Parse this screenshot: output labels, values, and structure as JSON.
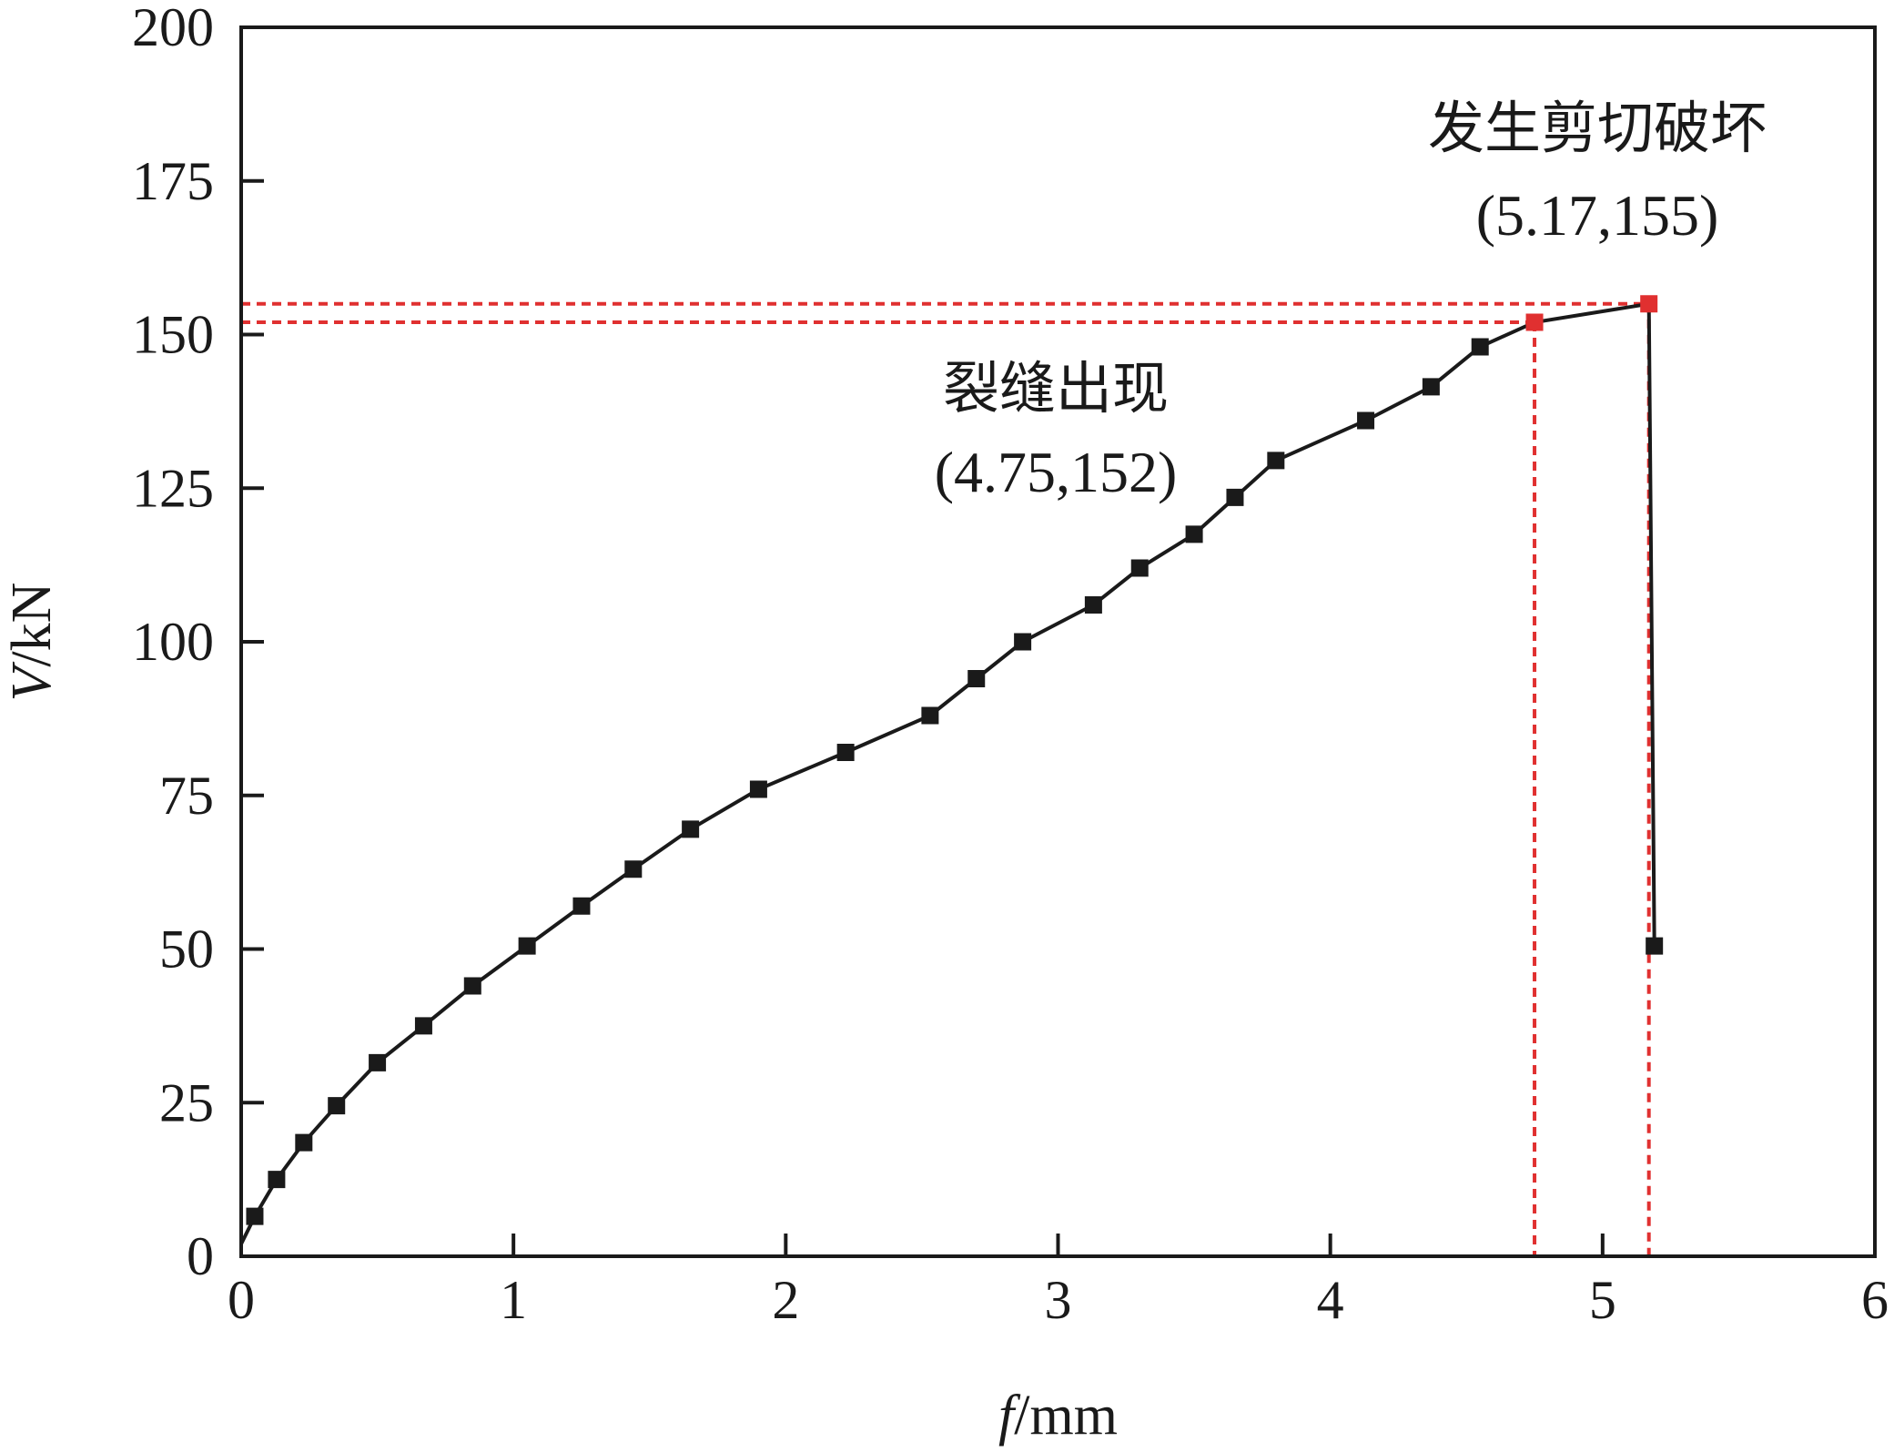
{
  "chart_data": {
    "type": "line",
    "x_axis": {
      "label_var": "f",
      "label_unit": "/mm",
      "range": [
        0,
        6
      ],
      "ticks": [
        0,
        1,
        2,
        3,
        4,
        5,
        6
      ],
      "tick_labels": [
        "0",
        "1",
        "2",
        "3",
        "4",
        "5",
        "6"
      ]
    },
    "y_axis": {
      "label_var": "V",
      "label_unit": "/kN",
      "range": [
        0,
        200
      ],
      "ticks": [
        0,
        25,
        50,
        75,
        100,
        125,
        150,
        175,
        200
      ],
      "tick_labels": [
        "0",
        "25",
        "50",
        "75",
        "100",
        "125",
        "150",
        "175",
        "200"
      ]
    },
    "series": [
      {
        "points": [
          [
            0.0,
            2.0
          ],
          [
            0.05,
            6.5
          ],
          [
            0.13,
            12.5
          ],
          [
            0.23,
            18.5
          ],
          [
            0.35,
            24.5
          ],
          [
            0.5,
            31.5
          ],
          [
            0.67,
            37.5
          ],
          [
            0.85,
            44.0
          ],
          [
            1.05,
            50.5
          ],
          [
            1.25,
            57.0
          ],
          [
            1.44,
            63.0
          ],
          [
            1.65,
            69.5
          ],
          [
            1.9,
            76.0
          ],
          [
            2.22,
            82.0
          ],
          [
            2.53,
            88.0
          ],
          [
            2.7,
            94.0
          ],
          [
            2.87,
            100.0
          ],
          [
            3.13,
            106.0
          ],
          [
            3.3,
            112.0
          ],
          [
            3.5,
            117.5
          ],
          [
            3.65,
            123.5
          ],
          [
            3.8,
            129.5
          ],
          [
            4.13,
            136.0
          ],
          [
            4.37,
            141.5
          ],
          [
            4.55,
            148.0
          ],
          [
            4.75,
            152.0
          ],
          [
            5.17,
            155.0
          ],
          [
            5.19,
            50.5
          ]
        ],
        "color": "#1a1a1a",
        "marker": "square"
      }
    ],
    "key_points": [
      {
        "x": 4.75,
        "y": 152,
        "label": "裂缝出现",
        "coord_label": "(4.75,152)",
        "color": "#e03030"
      },
      {
        "x": 5.17,
        "y": 155,
        "label": "发生剪切破坏",
        "coord_label": "(5.17,155)",
        "color": "#e03030"
      }
    ],
    "grid": false,
    "legend": "none"
  }
}
